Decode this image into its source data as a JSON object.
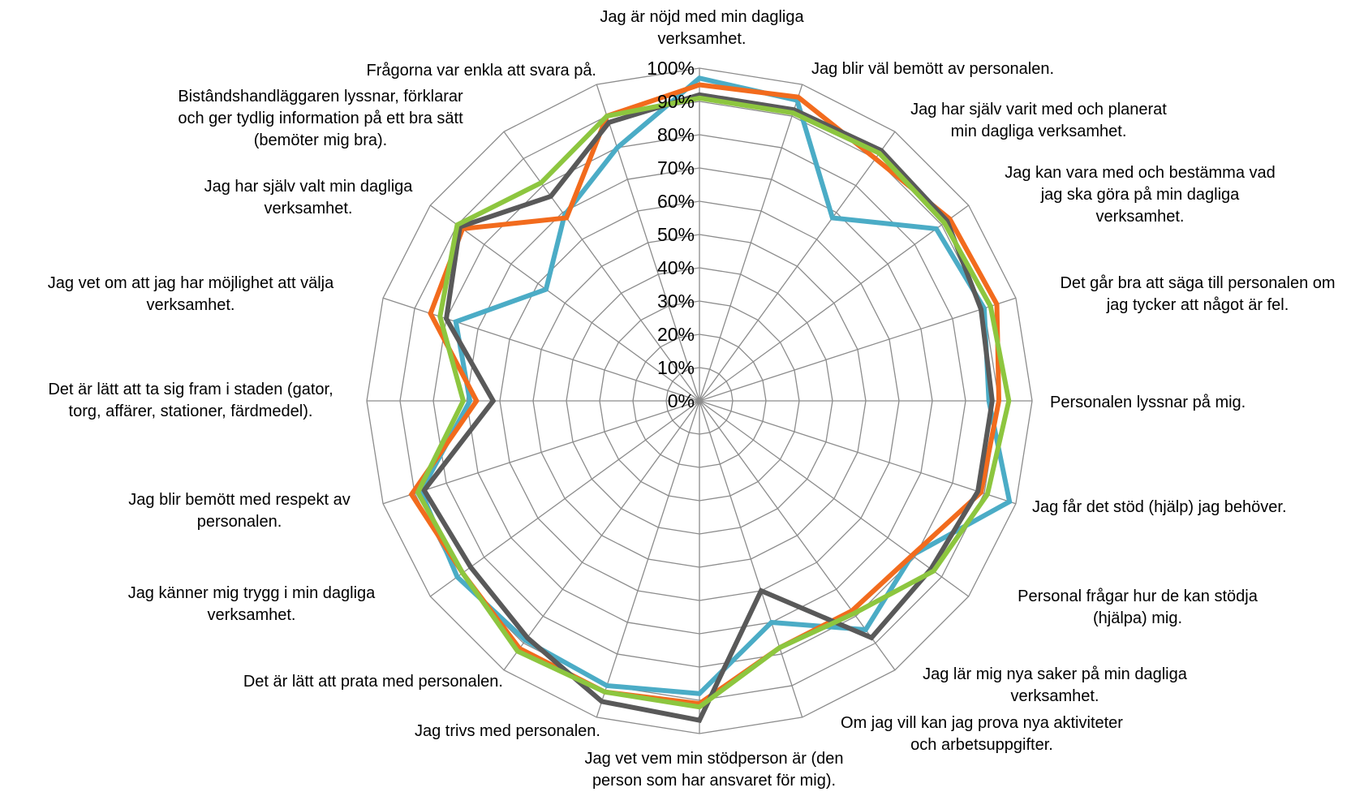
{
  "chart_data": {
    "type": "radar",
    "title": "",
    "categories": [
      "Jag är nöjd med min dagliga\nverksamhet.",
      "Jag blir väl bemött av personalen.",
      "Jag har själv varit med och planerat\nmin dagliga verksamhet.",
      "Jag kan vara med och bestämma vad\njag ska göra på min dagliga\nverksamhet.",
      "Det går bra att säga till personalen om\njag tycker att något är fel.",
      "Personalen lyssnar på mig.",
      "Jag får det stöd (hjälp) jag behöver.",
      "Personal frågar hur de kan stödja\n(hjälpa) mig.",
      "Jag lär mig nya saker på min dagliga\nverksamhet.",
      "Om jag vill kan jag prova nya aktiviteter\noch arbetsuppgifter.",
      "Jag vet vem min stödperson är (den\nperson som har ansvaret för mig).",
      "Jag trivs med personalen.",
      "Det är lätt att prata med personalen.",
      "Jag känner mig trygg i min dagliga\nverksamhet.",
      "Jag blir bemött med respekt av\npersonalen.",
      "Det är lätt att ta sig fram i staden (gator,\ntorg, affärer, stationer, färdmedel).",
      "Jag vet om att jag har möjlighet att välja\nverksamhet.",
      "Jag har själv valt min dagliga\nverksamhet.",
      "Bistândshandläggaren lyssnar, förklarar\noch ger tydlig information på ett bra sätt\n(bemöter mig bra).",
      "Frågorna var enkla att svara på."
    ],
    "rlim": [
      0,
      100
    ],
    "ticks": [
      "0%",
      "10%",
      "20%",
      "30%",
      "40%",
      "50%",
      "60%",
      "70%",
      "80%",
      "90%",
      "100%"
    ],
    "grid": true,
    "legend": "none",
    "series": [
      {
        "color": "#4BACC6",
        "values": [
          97,
          95,
          68,
          88,
          90,
          87,
          98,
          79,
          85,
          70,
          88,
          90,
          89,
          90,
          88,
          69,
          77,
          57,
          69,
          80
        ]
      },
      {
        "color": "#F26B1D",
        "values": [
          95,
          96,
          90,
          93,
          94,
          90,
          89,
          79,
          78,
          78,
          91,
          92,
          92,
          88,
          91,
          67,
          85,
          88,
          68,
          90
        ]
      },
      {
        "color": "#595959",
        "values": [
          92,
          92,
          93,
          92,
          89,
          88,
          88,
          86,
          88,
          60,
          96,
          95,
          88,
          85,
          87,
          62,
          80,
          89,
          76,
          88
        ]
      },
      {
        "color": "#8DC63F",
        "values": [
          91,
          91,
          92,
          91,
          92,
          93,
          91,
          87,
          79,
          78,
          92,
          92,
          93,
          88,
          89,
          71,
          82,
          90,
          81,
          90
        ]
      }
    ]
  }
}
